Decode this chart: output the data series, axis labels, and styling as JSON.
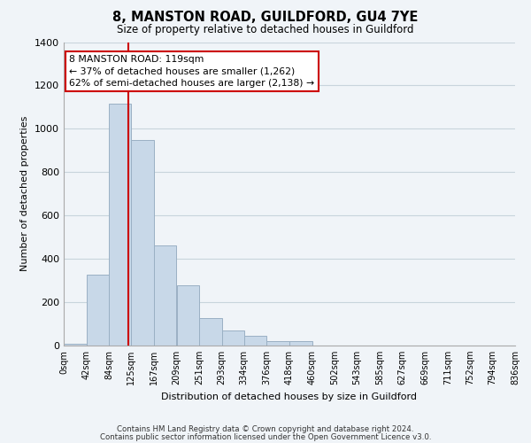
{
  "title": "8, MANSTON ROAD, GUILDFORD, GU4 7YE",
  "subtitle": "Size of property relative to detached houses in Guildford",
  "xlabel": "Distribution of detached houses by size in Guildford",
  "ylabel": "Number of detached properties",
  "bar_values": [
    10,
    325,
    1115,
    950,
    460,
    280,
    125,
    70,
    45,
    20,
    20,
    0,
    0,
    0,
    0,
    0,
    0,
    0,
    0,
    0
  ],
  "bin_edges": [
    0,
    42,
    84,
    125,
    167,
    209,
    251,
    293,
    334,
    376,
    418,
    460,
    502,
    543,
    585,
    627,
    669,
    711,
    752,
    794,
    836
  ],
  "tick_labels": [
    "0sqm",
    "42sqm",
    "84sqm",
    "125sqm",
    "167sqm",
    "209sqm",
    "251sqm",
    "293sqm",
    "334sqm",
    "376sqm",
    "418sqm",
    "460sqm",
    "502sqm",
    "543sqm",
    "585sqm",
    "627sqm",
    "669sqm",
    "711sqm",
    "752sqm",
    "794sqm",
    "836sqm"
  ],
  "bar_color": "#c8d8e8",
  "bar_edge_color": "#9ab0c4",
  "vline_x": 119,
  "vline_color": "#cc0000",
  "annotation_text": "8 MANSTON ROAD: 119sqm\n← 37% of detached houses are smaller (1,262)\n62% of semi-detached houses are larger (2,138) →",
  "annotation_box_color": "#ffffff",
  "annotation_box_edge": "#cc0000",
  "ylim": [
    0,
    1400
  ],
  "yticks": [
    0,
    200,
    400,
    600,
    800,
    1000,
    1200,
    1400
  ],
  "footnote1": "Contains HM Land Registry data © Crown copyright and database right 2024.",
  "footnote2": "Contains public sector information licensed under the Open Government Licence v3.0.",
  "bg_color": "#f0f4f8",
  "plot_bg_color": "#f0f4f8",
  "grid_color": "#c8d4dc"
}
